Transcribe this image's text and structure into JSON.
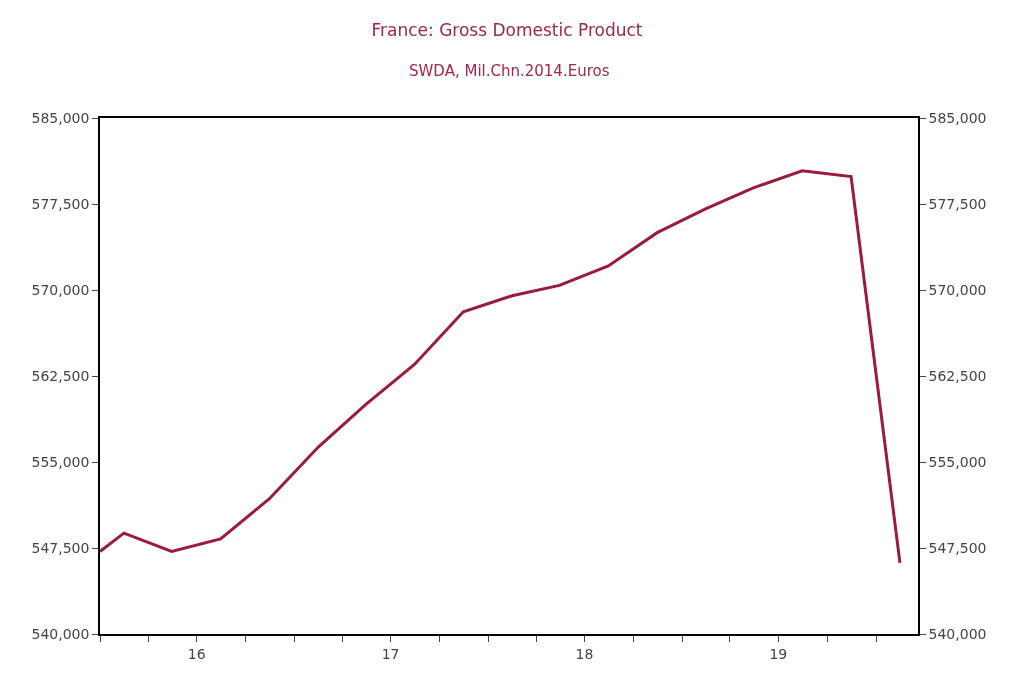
{
  "chart_data": {
    "type": "line",
    "title": "France: Gross Domestic Product",
    "subtitle": "SWDA, Mil.Chn.2014.Euros",
    "x": [
      "2016-01-01",
      "2016-02-15",
      "2016-05-15",
      "2016-08-15",
      "2016-11-15",
      "2017-02-15",
      "2017-05-15",
      "2017-08-15",
      "2017-11-15",
      "2018-02-15",
      "2018-05-15",
      "2018-08-15",
      "2018-11-15",
      "2019-02-15",
      "2019-05-15",
      "2019-08-15",
      "2019-11-15",
      "2020-02-15"
    ],
    "series": [
      {
        "color": "#9b1b3a",
        "values": [
          547200,
          548800,
          547200,
          548300,
          551800,
          556300,
          560000,
          563500,
          568100,
          569500,
          570400,
          572100,
          575000,
          577100,
          578900,
          580400,
          579900,
          546200
        ]
      }
    ],
    "xlim": [
      "2016-01-01",
      "2020-03-20"
    ],
    "xticks": [
      {
        "value": "2016-01-01",
        "label": null
      },
      {
        "value": "2016-04-01",
        "label": null
      },
      {
        "value": "2016-07-01",
        "label": "16"
      },
      {
        "value": "2016-10-01",
        "label": null
      },
      {
        "value": "2017-01-01",
        "label": null
      },
      {
        "value": "2017-04-01",
        "label": null
      },
      {
        "value": "2017-07-01",
        "label": "17"
      },
      {
        "value": "2017-10-01",
        "label": null
      },
      {
        "value": "2018-01-01",
        "label": null
      },
      {
        "value": "2018-04-01",
        "label": null
      },
      {
        "value": "2018-07-01",
        "label": "18"
      },
      {
        "value": "2018-10-01",
        "label": null
      },
      {
        "value": "2019-01-01",
        "label": null
      },
      {
        "value": "2019-04-01",
        "label": null
      },
      {
        "value": "2019-07-01",
        "label": "19"
      },
      {
        "value": "2019-10-01",
        "label": null
      },
      {
        "value": "2020-01-01",
        "label": null
      }
    ],
    "ylim": [
      540000,
      585000
    ],
    "yticks": [
      {
        "value": 540000,
        "label": "540,000"
      },
      {
        "value": 547500,
        "label": "547,500"
      },
      {
        "value": 555000,
        "label": "555,000"
      },
      {
        "value": 562500,
        "label": "562,500"
      },
      {
        "value": 570000,
        "label": "570,000"
      },
      {
        "value": 577500,
        "label": "577,500"
      },
      {
        "value": 585000,
        "label": "585,000"
      }
    ],
    "y2lim": [
      540000,
      585000
    ],
    "y2ticks": [
      {
        "value": 540000,
        "label": "540,000"
      },
      {
        "value": 547500,
        "label": "547,500"
      },
      {
        "value": 555000,
        "label": "555,000"
      },
      {
        "value": 562500,
        "label": "562,500"
      },
      {
        "value": 570000,
        "label": "570,000"
      },
      {
        "value": 577500,
        "label": "577,500"
      },
      {
        "value": 585000,
        "label": "585,000"
      }
    ],
    "marker": "none",
    "line_style": "solid"
  }
}
